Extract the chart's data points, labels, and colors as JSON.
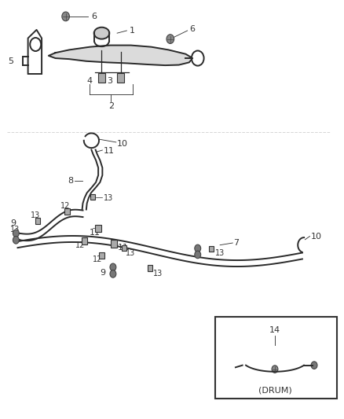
{
  "bg_color": "#ffffff",
  "line_color": "#2a2a2a",
  "label_color": "#333333",
  "figsize": [
    4.38,
    5.33
  ],
  "dpi": 100
}
